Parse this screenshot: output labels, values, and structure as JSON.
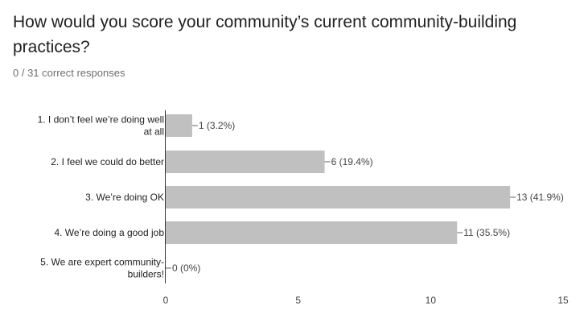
{
  "question": {
    "title": "How would you score your community’s current community-building practices?",
    "summary": "0 / 31 correct responses"
  },
  "chart_data": {
    "type": "bar",
    "orientation": "horizontal",
    "categories": [
      [
        "1. I don’t feel we’re doing well",
        "at all"
      ],
      [
        "2. I feel we could do better"
      ],
      [
        "3. We’re doing OK"
      ],
      [
        "4. We’re doing a good job"
      ],
      [
        "5. We are expert community-",
        "builders!"
      ]
    ],
    "values": [
      1,
      6,
      13,
      11,
      0
    ],
    "value_labels": [
      "1 (3.2%)",
      "6 (19.4%)",
      "13 (41.9%)",
      "11 (35.5%)",
      "0 (0%)"
    ],
    "xlim": [
      0,
      15
    ],
    "xticks": [
      0,
      5,
      10,
      15
    ],
    "xtick_labels": [
      "0",
      "5",
      "10",
      "15"
    ],
    "grid": false,
    "bar_color": "#c0c0c0",
    "axis_color": "#333333"
  }
}
